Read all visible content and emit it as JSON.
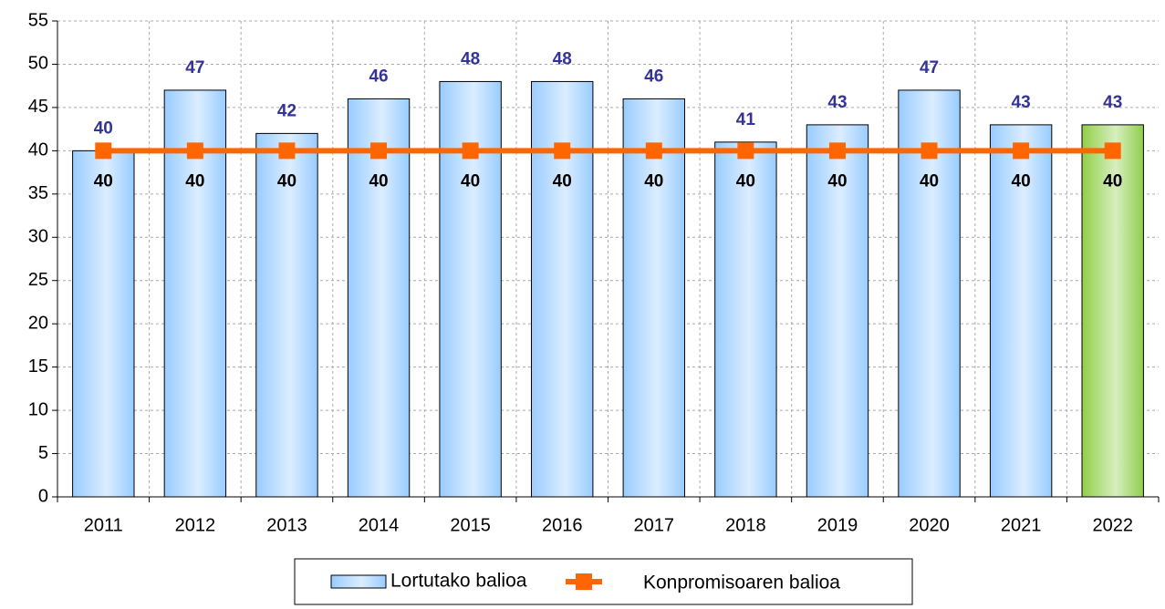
{
  "chart_data": {
    "type": "bar",
    "categories": [
      "2011",
      "2012",
      "2013",
      "2014",
      "2015",
      "2016",
      "2017",
      "2018",
      "2019",
      "2020",
      "2021",
      "2022"
    ],
    "series": [
      {
        "name": "Lortutako balioa",
        "type": "bar",
        "color": "#99ccff",
        "colors": [
          "#99ccff",
          "#99ccff",
          "#99ccff",
          "#99ccff",
          "#99ccff",
          "#99ccff",
          "#99ccff",
          "#99ccff",
          "#99ccff",
          "#99ccff",
          "#99ccff",
          "#8fcf4a"
        ],
        "label_color": "#333399",
        "values": [
          40,
          47,
          42,
          46,
          48,
          48,
          46,
          41,
          43,
          47,
          43,
          43
        ]
      },
      {
        "name": "Konpromisoaren balioa",
        "type": "line",
        "color": "#ff6600",
        "label_color": "#000000",
        "values": [
          40,
          40,
          40,
          40,
          40,
          40,
          40,
          40,
          40,
          40,
          40,
          40
        ]
      }
    ],
    "ylim": [
      0,
      55
    ],
    "yticks": [
      0,
      5,
      10,
      15,
      20,
      25,
      30,
      35,
      40,
      45,
      50,
      55
    ],
    "grid": true,
    "legend": "bottom"
  }
}
